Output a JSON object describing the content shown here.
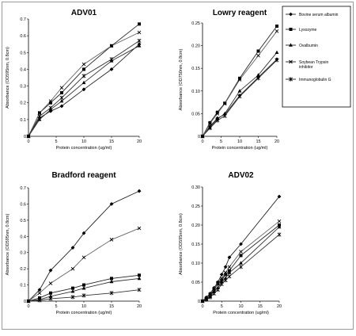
{
  "chart_data": [
    {
      "type": "line",
      "title": "ADV01",
      "xlabel": "Protein concentration (ug/ml)",
      "ylabel": "Absorbance (OD595nm, 0.8cm)",
      "xlim": [
        0,
        20
      ],
      "ylim": [
        0,
        0.7
      ],
      "xticks": [
        0,
        5,
        10,
        15,
        20
      ],
      "yticks": [
        0,
        0.1,
        0.2,
        0.3,
        0.4,
        0.5,
        0.6,
        0.7
      ],
      "legend": true,
      "series": [
        {
          "name": "Bovine serum albumin",
          "marker": "diamond",
          "x": [
            0,
            2,
            4,
            6,
            10,
            15,
            20
          ],
          "y": [
            0,
            0.11,
            0.15,
            0.18,
            0.28,
            0.4,
            0.55
          ]
        },
        {
          "name": "Lysozyme",
          "marker": "square",
          "x": [
            0,
            2,
            4,
            6,
            10,
            15,
            20
          ],
          "y": [
            0,
            0.14,
            0.2,
            0.26,
            0.4,
            0.54,
            0.67
          ]
        },
        {
          "name": "Ovalbumin",
          "marker": "triangle",
          "x": [
            0,
            2,
            4,
            6,
            10,
            15,
            20
          ],
          "y": [
            0,
            0.1,
            0.16,
            0.21,
            0.32,
            0.45,
            0.54
          ]
        },
        {
          "name": "Soybean Trypsin inhibitor",
          "marker": "x",
          "x": [
            0,
            2,
            4,
            6,
            10,
            15,
            20
          ],
          "y": [
            0,
            0.14,
            0.21,
            0.29,
            0.43,
            0.54,
            0.62
          ]
        },
        {
          "name": "Immunoglobulin G",
          "marker": "star",
          "x": [
            0,
            2,
            4,
            6,
            10,
            15,
            20
          ],
          "y": [
            0,
            0.12,
            0.17,
            0.23,
            0.36,
            0.46,
            0.57
          ]
        }
      ]
    },
    {
      "type": "line",
      "title": "Lowry reagent",
      "xlabel": "Protein concentration (ug/ml)",
      "ylabel": "Absorbance (OD750nm, 0.8cm)",
      "xlim": [
        0,
        20
      ],
      "ylim": [
        0,
        0.25
      ],
      "xticks": [
        0,
        5,
        10,
        15,
        20
      ],
      "yticks": [
        0,
        0.05,
        0.1,
        0.15,
        0.2,
        0.25
      ],
      "series": [
        {
          "name": "Bovine serum albumin",
          "marker": "diamond",
          "x": [
            0,
            2,
            4,
            6,
            10,
            15,
            20
          ],
          "y": [
            0,
            0.022,
            0.04,
            0.048,
            0.09,
            0.13,
            0.17
          ]
        },
        {
          "name": "Lysozyme",
          "marker": "square",
          "x": [
            0,
            2,
            4,
            6,
            10,
            15,
            20
          ],
          "y": [
            0,
            0.03,
            0.053,
            0.073,
            0.128,
            0.188,
            0.243
          ]
        },
        {
          "name": "Ovalbumin",
          "marker": "triangle",
          "x": [
            0,
            2,
            4,
            6,
            10,
            15,
            20
          ],
          "y": [
            0,
            0.02,
            0.038,
            0.05,
            0.1,
            0.135,
            0.185
          ]
        },
        {
          "name": "Soybean Trypsin inhibitor",
          "marker": "x",
          "x": [
            0,
            2,
            4,
            6,
            10,
            15,
            20
          ],
          "y": [
            0,
            0.028,
            0.05,
            0.072,
            0.125,
            0.178,
            0.232
          ]
        },
        {
          "name": "Immunoglobulin G",
          "marker": "star",
          "x": [
            0,
            2,
            4,
            6,
            10,
            15,
            20
          ],
          "y": [
            0,
            0.018,
            0.035,
            0.045,
            0.088,
            0.128,
            0.168
          ]
        }
      ]
    },
    {
      "type": "line",
      "title": "Bradford reagent",
      "xlabel": "Protein concentration (ug/ml)",
      "ylabel": "Absorbance (OD595nm, 0.8cm)",
      "xlim": [
        0,
        20
      ],
      "ylim": [
        0,
        0.7
      ],
      "xticks": [
        0,
        5,
        10,
        15,
        20
      ],
      "yticks": [
        0,
        0.1,
        0.2,
        0.3,
        0.4,
        0.5,
        0.6,
        0.7
      ],
      "series": [
        {
          "name": "Bovine serum albumin",
          "marker": "diamond",
          "x": [
            0,
            2,
            4,
            8,
            10,
            15,
            20
          ],
          "y": [
            0,
            0.07,
            0.19,
            0.33,
            0.42,
            0.6,
            0.68
          ]
        },
        {
          "name": "Lysozyme",
          "marker": "square",
          "x": [
            0,
            2,
            4,
            8,
            10,
            15,
            20
          ],
          "y": [
            0,
            0.02,
            0.05,
            0.08,
            0.1,
            0.14,
            0.16
          ]
        },
        {
          "name": "Ovalbumin",
          "marker": "triangle",
          "x": [
            0,
            2,
            4,
            8,
            10,
            15,
            20
          ],
          "y": [
            0,
            0.01,
            0.03,
            0.06,
            0.08,
            0.12,
            0.14
          ]
        },
        {
          "name": "Soybean Trypsin inhibitor",
          "marker": "x",
          "x": [
            0,
            2,
            4,
            8,
            10,
            15,
            20
          ],
          "y": [
            0,
            0.05,
            0.11,
            0.2,
            0.27,
            0.38,
            0.45
          ]
        },
        {
          "name": "Immunoglobulin G",
          "marker": "star",
          "x": [
            0,
            2,
            4,
            8,
            10,
            15,
            20
          ],
          "y": [
            0,
            0.005,
            0.015,
            0.025,
            0.035,
            0.05,
            0.07
          ]
        }
      ]
    },
    {
      "type": "line",
      "title": "ADV02",
      "xlabel": "Protein concentration (ug/ml)",
      "ylabel": "Absorbance (OD595nm, 0.8cm)",
      "xlim": [
        0,
        20
      ],
      "ylim": [
        0,
        0.3
      ],
      "xticks": [
        0,
        5,
        10,
        15,
        20
      ],
      "yticks": [
        0,
        0.05,
        0.1,
        0.15,
        0.2,
        0.25,
        0.3
      ],
      "series": [
        {
          "name": "Bovine serum albumin",
          "marker": "diamond",
          "x": [
            0,
            1,
            2,
            3,
            4,
            5,
            6,
            7,
            10,
            20
          ],
          "y": [
            0,
            0.01,
            0.02,
            0.035,
            0.05,
            0.07,
            0.09,
            0.115,
            0.15,
            0.275
          ]
        },
        {
          "name": "Lysozyme",
          "marker": "square",
          "x": [
            0,
            1,
            2,
            3,
            4,
            5,
            6,
            7,
            10,
            20
          ],
          "y": [
            0,
            0.008,
            0.015,
            0.03,
            0.045,
            0.055,
            0.07,
            0.08,
            0.12,
            0.2
          ]
        },
        {
          "name": "Ovalbumin",
          "marker": "triangle",
          "x": [
            0,
            1,
            2,
            3,
            4,
            5,
            6,
            7,
            10,
            20
          ],
          "y": [
            0,
            0.005,
            0.012,
            0.025,
            0.035,
            0.05,
            0.06,
            0.075,
            0.1,
            0.195
          ]
        },
        {
          "name": "Soybean Trypsin inhibitor",
          "marker": "x",
          "x": [
            0,
            1,
            2,
            3,
            4,
            5,
            6,
            7,
            10,
            20
          ],
          "y": [
            0,
            0.006,
            0.018,
            0.032,
            0.048,
            0.06,
            0.075,
            0.09,
            0.13,
            0.21
          ]
        },
        {
          "name": "Immunoglobulin G",
          "marker": "star",
          "x": [
            0,
            1,
            2,
            3,
            4,
            5,
            6,
            7,
            10,
            20
          ],
          "y": [
            0,
            0.004,
            0.01,
            0.02,
            0.03,
            0.045,
            0.055,
            0.065,
            0.09,
            0.175
          ]
        }
      ]
    }
  ]
}
